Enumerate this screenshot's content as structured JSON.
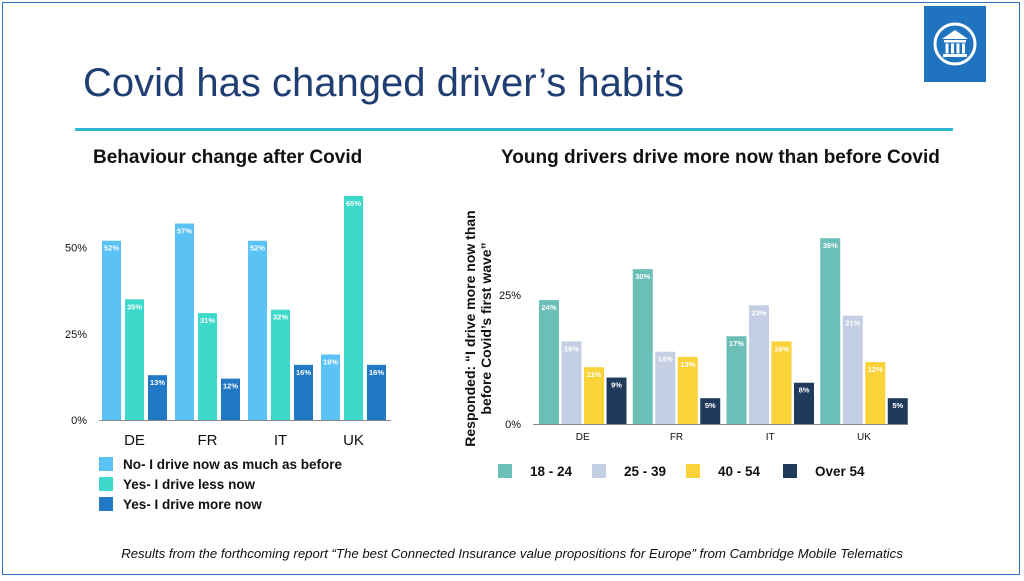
{
  "title": "Covid has changed driver’s habits",
  "footer": "Results from the forthcoming report “The best Connected Insurance value propositions for Europe” from Cambridge Mobile Telematics",
  "logo": {
    "icon": "columns-building-icon",
    "color": "#1f73bf"
  },
  "chart_data": [
    {
      "type": "bar",
      "title": "Behaviour change after Covid",
      "categories": [
        "DE",
        "FR",
        "IT",
        "UK"
      ],
      "series": [
        {
          "name": "No- I drive now as much as before",
          "color": "#5bc2f5",
          "values": [
            52,
            57,
            52,
            19
          ],
          "labels": [
            "52%",
            "57%",
            "52%",
            "19%"
          ]
        },
        {
          "name": "Yes- I drive less now",
          "color": "#3dd9cb",
          "values": [
            35,
            31,
            32,
            65
          ],
          "labels": [
            "35%",
            "31%",
            "32%",
            "65%"
          ]
        },
        {
          "name": "Yes- I drive more now",
          "color": "#2178c5",
          "values": [
            13,
            12,
            16,
            16
          ],
          "labels": [
            "13%",
            "12%",
            "16%",
            "16%"
          ]
        }
      ],
      "y_ticks": [
        "0%",
        "25%",
        "50%"
      ],
      "ylim": [
        0,
        67
      ],
      "grid": false,
      "legend_position": "bottom"
    },
    {
      "type": "bar",
      "title": "Young drivers drive more now than before Covid",
      "ylabel": "Responded: “I drive more now than before Covid’s first wave”",
      "categories": [
        "DE",
        "FR",
        "IT",
        "UK"
      ],
      "series": [
        {
          "name": "18 - 24",
          "color": "#6bbfb6",
          "values": [
            24,
            30,
            17,
            36
          ],
          "labels": [
            "24%",
            "30%",
            "17%",
            "36%"
          ]
        },
        {
          "name": "25 - 39",
          "color": "#c5cfe3",
          "values": [
            16,
            14,
            23,
            21
          ],
          "labels": [
            "16%",
            "14%",
            "23%",
            "21%"
          ]
        },
        {
          "name": "40 - 54",
          "color": "#fad23a",
          "values": [
            11,
            13,
            16,
            12
          ],
          "labels": [
            "11%",
            "13%",
            "16%",
            "12%"
          ]
        },
        {
          "name": "Over 54",
          "color": "#1f3a5a",
          "values": [
            9,
            5,
            8,
            5
          ],
          "labels": [
            "9%",
            "5%",
            "8%",
            "5%"
          ]
        }
      ],
      "y_ticks": [
        "0%",
        "25%"
      ],
      "ylim": [
        0,
        37
      ],
      "grid": false,
      "legend_position": "bottom"
    }
  ]
}
